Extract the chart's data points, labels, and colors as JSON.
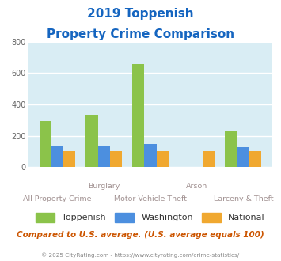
{
  "title_line1": "2019 Toppenish",
  "title_line2": "Property Crime Comparison",
  "categories": [
    "All Property Crime",
    "Burglary",
    "Motor Vehicle Theft",
    "Arson",
    "Larceny & Theft"
  ],
  "top_labels": {
    "1": "Burglary",
    "3": "Arson"
  },
  "bottom_labels": {
    "0": "All Property Crime",
    "2": "Motor Vehicle Theft",
    "4": "Larceny & Theft"
  },
  "series": {
    "Toppenish": [
      295,
      330,
      660,
      0,
      228
    ],
    "Washington": [
      130,
      135,
      150,
      0,
      125
    ],
    "National": [
      100,
      100,
      100,
      100,
      100
    ]
  },
  "colors": {
    "Toppenish": "#8bc34a",
    "Washington": "#4c8fdf",
    "National": "#f0a830"
  },
  "ylim": [
    0,
    800
  ],
  "yticks": [
    0,
    200,
    400,
    600,
    800
  ],
  "plot_bg": "#d9edf4",
  "title_color": "#1565c0",
  "subtitle_note": "Compared to U.S. average. (U.S. average equals 100)",
  "copyright": "© 2025 CityRating.com - https://www.cityrating.com/crime-statistics/",
  "subtitle_color": "#cc5500",
  "copyright_color": "#888888",
  "grid_color": "#ffffff",
  "label_color": "#a09090"
}
